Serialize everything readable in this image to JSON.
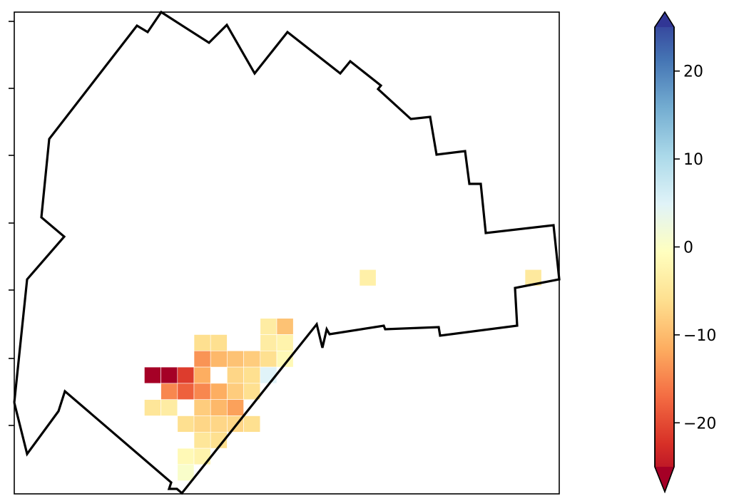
{
  "chart_data": {
    "type": "heatmap",
    "title": "",
    "xlabel": "",
    "ylabel": "",
    "colormap": "RdYlBu",
    "vmin": -25,
    "vmax": 25,
    "colorbar": {
      "extend": "both",
      "ticks": [
        20,
        10,
        0,
        -10,
        -20
      ],
      "tick_labels": [
        "20",
        "10",
        "0",
        "−10",
        "−20"
      ],
      "location": "right"
    },
    "cells": [
      {
        "col": 21,
        "row": 1,
        "value": -2.5
      },
      {
        "col": 31,
        "row": 1,
        "value": -3.5
      },
      {
        "col": 15,
        "row": 4,
        "value": -3
      },
      {
        "col": 16,
        "row": 4,
        "value": -8
      },
      {
        "col": 11,
        "row": 5,
        "value": -5
      },
      {
        "col": 12,
        "row": 5,
        "value": -5
      },
      {
        "col": 15,
        "row": 5,
        "value": -3
      },
      {
        "col": 16,
        "row": 5,
        "value": -2
      },
      {
        "col": 11,
        "row": 6,
        "value": -12
      },
      {
        "col": 12,
        "row": 6,
        "value": -9
      },
      {
        "col": 13,
        "row": 6,
        "value": -8
      },
      {
        "col": 14,
        "row": 6,
        "value": -7
      },
      {
        "col": 15,
        "row": 6,
        "value": -5
      },
      {
        "col": 16,
        "row": 6,
        "value": -1
      },
      {
        "col": 8,
        "row": 7,
        "value": -25
      },
      {
        "col": 9,
        "row": 7,
        "value": -25
      },
      {
        "col": 10,
        "row": 7,
        "value": -19
      },
      {
        "col": 11,
        "row": 7,
        "value": -10
      },
      {
        "col": 13,
        "row": 7,
        "value": -6
      },
      {
        "col": 14,
        "row": 7,
        "value": -5
      },
      {
        "col": 15,
        "row": 7,
        "value": 5
      },
      {
        "col": 9,
        "row": 8,
        "value": -13
      },
      {
        "col": 10,
        "row": 8,
        "value": -16
      },
      {
        "col": 11,
        "row": 8,
        "value": -13
      },
      {
        "col": 12,
        "row": 8,
        "value": -10
      },
      {
        "col": 13,
        "row": 8,
        "value": -7
      },
      {
        "col": 14,
        "row": 8,
        "value": -5
      },
      {
        "col": 8,
        "row": 9,
        "value": -4
      },
      {
        "col": 9,
        "row": 9,
        "value": -3
      },
      {
        "col": 11,
        "row": 9,
        "value": -7
      },
      {
        "col": 12,
        "row": 9,
        "value": -9
      },
      {
        "col": 13,
        "row": 9,
        "value": -11
      },
      {
        "col": 10,
        "row": 10,
        "value": -5
      },
      {
        "col": 11,
        "row": 10,
        "value": -6
      },
      {
        "col": 12,
        "row": 10,
        "value": -6
      },
      {
        "col": 13,
        "row": 10,
        "value": -6
      },
      {
        "col": 14,
        "row": 10,
        "value": -5
      },
      {
        "col": 11,
        "row": 11,
        "value": -4
      },
      {
        "col": 12,
        "row": 11,
        "value": -5
      },
      {
        "col": 10,
        "row": 12,
        "value": -1
      },
      {
        "col": 11,
        "row": 12,
        "value": -2
      },
      {
        "col": 10,
        "row": 13,
        "value": 1
      }
    ]
  }
}
